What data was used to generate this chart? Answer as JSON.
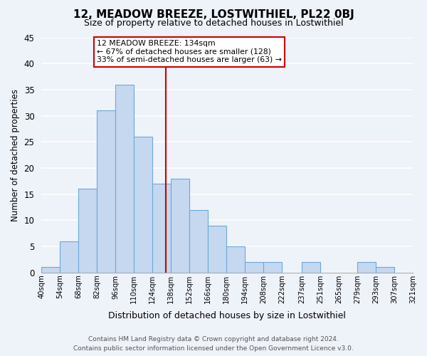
{
  "title": "12, MEADOW BREEZE, LOSTWITHIEL, PL22 0BJ",
  "subtitle": "Size of property relative to detached houses in Lostwithiel",
  "xlabel": "Distribution of detached houses by size in Lostwithiel",
  "ylabel": "Number of detached properties",
  "footer_line1": "Contains HM Land Registry data © Crown copyright and database right 2024.",
  "footer_line2": "Contains public sector information licensed under the Open Government Licence v3.0.",
  "bin_edges": [
    40,
    54,
    68,
    82,
    96,
    110,
    124,
    138,
    152,
    166,
    180,
    194,
    208,
    222,
    237,
    251,
    265,
    279,
    293,
    307,
    321
  ],
  "bin_counts": [
    1,
    6,
    16,
    31,
    36,
    26,
    17,
    18,
    12,
    9,
    5,
    2,
    2,
    0,
    2,
    0,
    0,
    2,
    1,
    0
  ],
  "bar_color": "#c5d8f0",
  "bar_edge_color": "#6ea8d8",
  "marker_value": 134,
  "marker_color": "#cc0000",
  "annotation_title": "12 MEADOW BREEZE: 134sqm",
  "annotation_line2": "← 67% of detached houses are smaller (128)",
  "annotation_line3": "33% of semi-detached houses are larger (63) →",
  "annotation_box_edge_color": "#cc0000",
  "ylim": [
    0,
    45
  ],
  "background_color": "#eef2f9",
  "grid_color": "#ffffff",
  "tick_labels": [
    "40sqm",
    "54sqm",
    "68sqm",
    "82sqm",
    "96sqm",
    "110sqm",
    "124sqm",
    "138sqm",
    "152sqm",
    "166sqm",
    "180sqm",
    "194sqm",
    "208sqm",
    "222sqm",
    "237sqm",
    "251sqm",
    "265sqm",
    "279sqm",
    "293sqm",
    "307sqm",
    "321sqm"
  ]
}
